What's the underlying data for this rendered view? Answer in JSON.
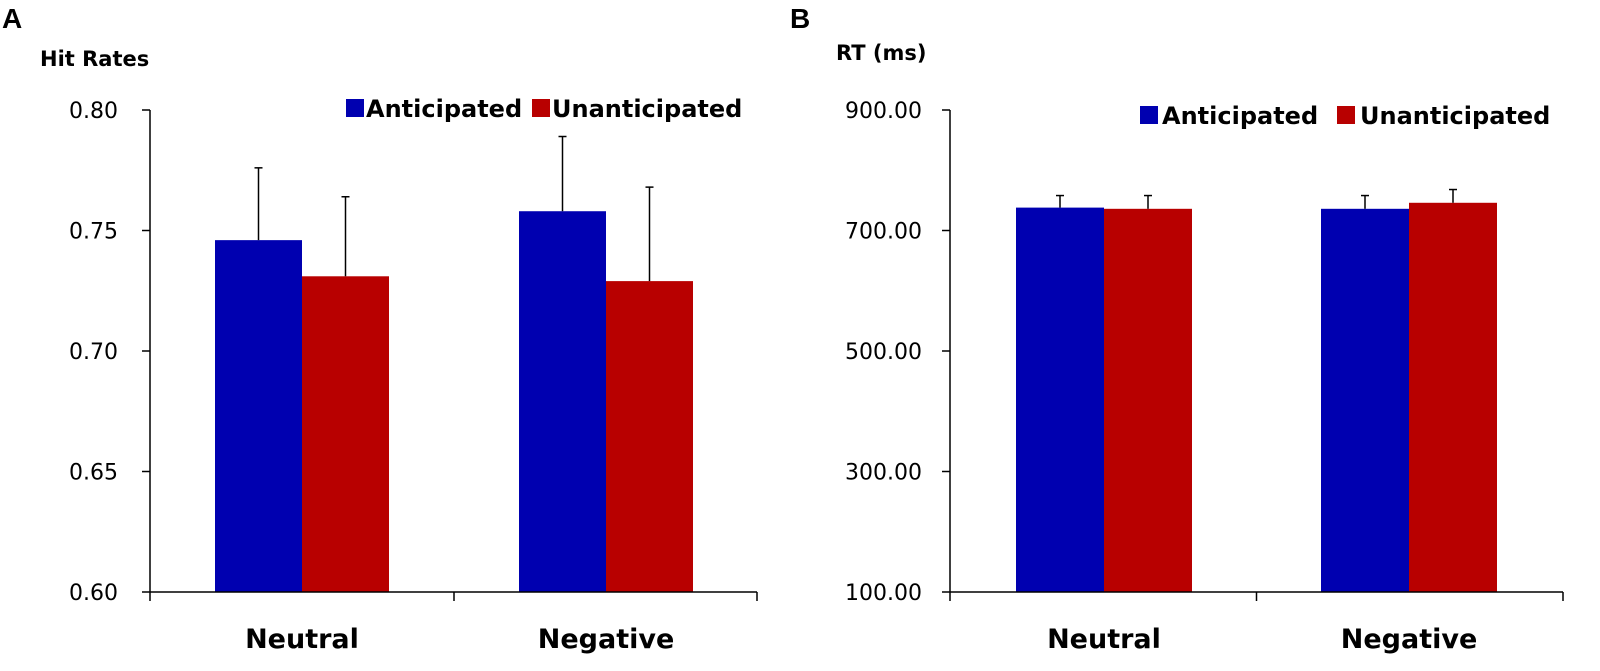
{
  "chart_data": [
    {
      "panel": "A",
      "type": "bar",
      "ylabel": "Hit Rates",
      "ylim": [
        0.6,
        0.8
      ],
      "yticks": [
        "0.60",
        "0.65",
        "0.70",
        "0.75",
        "0.80"
      ],
      "ytick_values": [
        0.6,
        0.65,
        0.7,
        0.75,
        0.8
      ],
      "categories": [
        "Neutral",
        "Negative"
      ],
      "series": [
        {
          "name": "Anticipated",
          "color": "#0000b0",
          "values": [
            0.746,
            0.758
          ],
          "errors": [
            0.03,
            0.031
          ]
        },
        {
          "name": "Unanticipated",
          "color": "#b80000",
          "values": [
            0.731,
            0.729
          ],
          "errors": [
            0.033,
            0.039
          ]
        }
      ],
      "legend": "top-right"
    },
    {
      "panel": "B",
      "type": "bar",
      "ylabel": "RT (ms)",
      "ylim": [
        100,
        900
      ],
      "yticks": [
        "100.00",
        "300.00",
        "500.00",
        "700.00",
        "900.00"
      ],
      "ytick_values": [
        100,
        300,
        500,
        700,
        900
      ],
      "categories": [
        "Neutral",
        "Negative"
      ],
      "series": [
        {
          "name": "Anticipated",
          "color": "#0000b0",
          "values": [
            738,
            736
          ],
          "errors": [
            20,
            22
          ]
        },
        {
          "name": "Unanticipated",
          "color": "#b80000",
          "values": [
            736,
            746
          ],
          "errors": [
            22,
            22
          ]
        }
      ],
      "legend": "top-right"
    }
  ]
}
